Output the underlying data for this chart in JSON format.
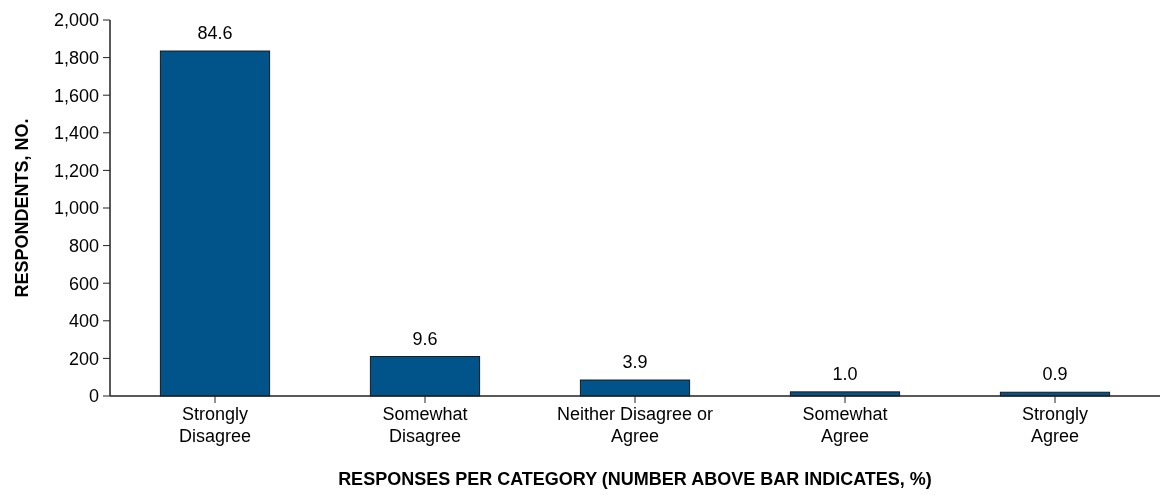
{
  "chart_data": {
    "type": "bar",
    "xlabel": "RESPONSES PER CATEGORY (NUMBER ABOVE BAR INDICATES, %)",
    "ylabel": "RESPONDENTS, NO.",
    "categories": [
      "Strongly\nDisagree",
      "Somewhat\nDisagree",
      "Neither Disagree or\nAgree",
      "Somewhat\nAgree",
      "Strongly\nAgree"
    ],
    "values": [
      1835,
      210,
      85,
      22,
      20
    ],
    "annotations": [
      {
        "text": "84.6",
        "x": "Strongly\nDisagree",
        "y": 1835
      },
      {
        "text": "9.6",
        "x": "Somewhat\nDisagree",
        "y": 210
      },
      {
        "text": "3.9",
        "x": "Neither Disagree or\nAgree",
        "y": 85
      },
      {
        "text": "1.0",
        "x": "Somewhat\nAgree",
        "y": 22
      },
      {
        "text": "0.9",
        "x": "Strongly\nAgree",
        "y": 20
      }
    ],
    "color": "#00548a",
    "ylim": [
      0,
      2000
    ],
    "yticks": [
      {
        "value": 0,
        "label": "0"
      },
      {
        "value": 200,
        "label": "200"
      },
      {
        "value": 400,
        "label": "400"
      },
      {
        "value": 600,
        "label": "600"
      },
      {
        "value": 800,
        "label": "800"
      },
      {
        "value": 1000,
        "label": "1,000"
      },
      {
        "value": 1200,
        "label": "1,200"
      },
      {
        "value": 1400,
        "label": "1,400"
      },
      {
        "value": 1600,
        "label": "1,600"
      },
      {
        "value": 1800,
        "label": "1,800"
      },
      {
        "value": 2000,
        "label": "2,000"
      }
    ]
  }
}
